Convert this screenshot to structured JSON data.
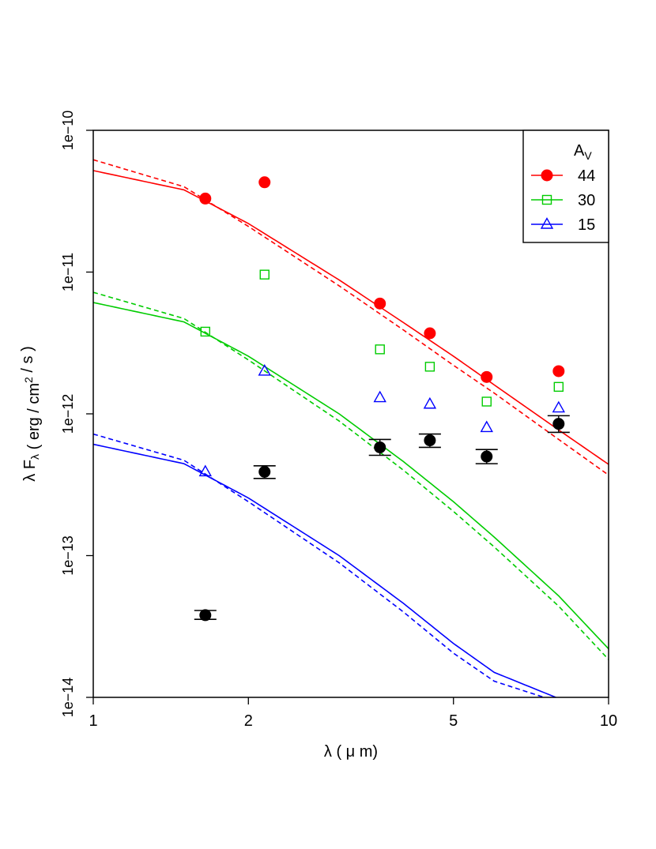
{
  "chart_data": {
    "type": "scatter",
    "xlabel": "λ ( μ m)",
    "ylabel": "λ F_λ ( erg / cm^2 / s )",
    "xscale": "log",
    "yscale": "log",
    "xlim": [
      1,
      10
    ],
    "ylim": [
      1e-14,
      1e-10
    ],
    "x_ticks": [
      1,
      2,
      5,
      10
    ],
    "x_tick_labels": [
      "1",
      "2",
      "5",
      "10"
    ],
    "y_ticks": [
      1e-14,
      1e-13,
      1e-12,
      1e-11,
      1e-10
    ],
    "y_tick_labels": [
      "1e−14",
      "1e−13",
      "1e−12",
      "1e−11",
      "1e−10"
    ],
    "legend": {
      "title": "A_V",
      "placement": "top-right",
      "entries": [
        "44",
        "30",
        "15"
      ]
    },
    "series": [
      {
        "name": "44",
        "kind": "points",
        "marker": "filled-circle",
        "color": "#ff0000",
        "x": [
          1.65,
          2.15,
          3.6,
          4.5,
          5.8,
          8.0
        ],
        "y": [
          3.3e-11,
          4.3e-11,
          6e-12,
          3.7e-12,
          1.82e-12,
          2e-12
        ]
      },
      {
        "name": "30",
        "kind": "points",
        "marker": "open-square",
        "color": "#00cc00",
        "x": [
          1.65,
          2.15,
          3.6,
          4.5,
          5.8,
          8.0
        ],
        "y": [
          3.8e-12,
          9.6e-12,
          2.85e-12,
          2.15e-12,
          1.22e-12,
          1.55e-12
        ]
      },
      {
        "name": "15",
        "kind": "points",
        "marker": "open-triangle",
        "color": "#0000ff",
        "x": [
          1.65,
          2.15,
          3.6,
          4.5,
          5.8,
          8.0
        ],
        "y": [
          3.9e-13,
          2e-12,
          1.3e-12,
          1.17e-12,
          8e-13,
          1.1e-12
        ]
      },
      {
        "kind": "points-errorbars",
        "marker": "filled-circle",
        "color": "#000000",
        "x": [
          1.65,
          2.15,
          3.6,
          4.5,
          5.8,
          8.0
        ],
        "y": [
          3.8e-14,
          3.9e-13,
          5.8e-13,
          6.5e-13,
          5e-13,
          8.5e-13
        ],
        "y_low": [
          3.55e-14,
          3.5e-13,
          5.1e-13,
          5.8e-13,
          4.45e-13,
          7.4e-13
        ],
        "y_high": [
          4.1e-14,
          4.3e-13,
          6.6e-13,
          7.2e-13,
          5.6e-13,
          9.7e-13
        ]
      }
    ],
    "curves": [
      {
        "color": "#ff0000",
        "dash": "solid",
        "x": [
          1,
          1.5,
          2,
          3,
          4,
          5,
          6,
          8,
          10
        ],
        "y": [
          5.2e-11,
          3.8e-11,
          2.2e-11,
          8.8e-12,
          4.4e-12,
          2.55e-12,
          1.6e-12,
          7.7e-13,
          4.4e-13
        ]
      },
      {
        "color": "#ff0000",
        "dash": "dashed",
        "x": [
          1,
          1.5,
          2,
          3,
          4,
          5,
          6,
          8,
          10
        ],
        "y": [
          6.2e-11,
          4e-11,
          2.1e-11,
          8e-12,
          3.9e-12,
          2.2e-12,
          1.4e-12,
          6.6e-13,
          3.7e-13
        ]
      },
      {
        "color": "#00cc00",
        "dash": "solid",
        "x": [
          1,
          1.5,
          2,
          3,
          4,
          5,
          6,
          8,
          10
        ],
        "y": [
          6.1e-12,
          4.45e-12,
          2.55e-12,
          1e-12,
          4.6e-13,
          2.4e-13,
          1.35e-13,
          5.2e-14,
          2.2e-14
        ]
      },
      {
        "color": "#00cc00",
        "dash": "dashed",
        "x": [
          1,
          1.5,
          2,
          3,
          4,
          5,
          6,
          8,
          10
        ],
        "y": [
          7.2e-12,
          4.7e-12,
          2.4e-12,
          8.9e-13,
          4e-13,
          2.05e-13,
          1.15e-13,
          4.4e-14,
          1.85e-14
        ]
      },
      {
        "color": "#0000ff",
        "dash": "solid",
        "x": [
          1,
          1.5,
          2,
          3,
          4,
          5,
          6,
          7.9
        ],
        "y": [
          6.1e-13,
          4.45e-13,
          2.55e-13,
          1e-13,
          4.6e-14,
          2.4e-14,
          1.5e-14,
          1e-14
        ]
      },
      {
        "color": "#0000ff",
        "dash": "dashed",
        "x": [
          1,
          1.5,
          2,
          3,
          4,
          5,
          6,
          7.5
        ],
        "y": [
          7.2e-13,
          4.7e-13,
          2.4e-13,
          8.9e-14,
          4e-14,
          2.05e-14,
          1.3e-14,
          1e-14
        ]
      }
    ]
  }
}
